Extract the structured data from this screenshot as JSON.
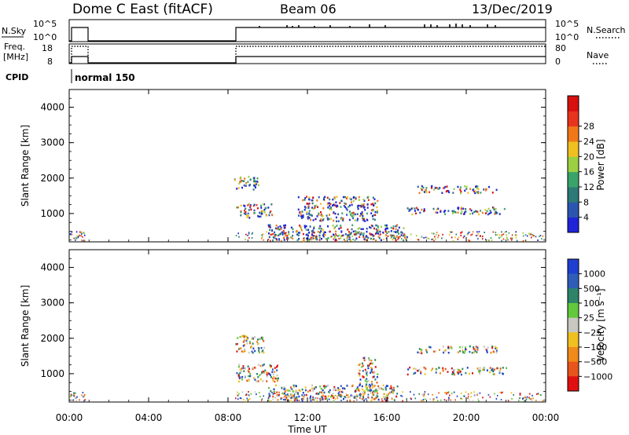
{
  "header": {
    "title": "Dome C East (fitACF)",
    "beam": "Beam 06",
    "date": "13/Dec/2019"
  },
  "strips": {
    "nsky_label": "N.Sky",
    "nsky_ticks": [
      "10^5",
      "10^0"
    ],
    "nsearch_label": "N.Search",
    "nsearch_ticks": [
      "10^5",
      "10^0"
    ],
    "freq_label": "Freq.",
    "freq_unit": "[MHz]",
    "freq_ticks": [
      "18",
      "8"
    ],
    "nave_label": "Nave",
    "nave_ticks": [
      "80",
      "0"
    ],
    "cpid_label": "CPID",
    "cpid_mode": "normal 150"
  },
  "colorbars": {
    "power": {
      "label": "Power [dB]",
      "ticks": [
        "4",
        "8",
        "12",
        "16",
        "20",
        "24",
        "28"
      ],
      "colors": [
        "#1f24d8",
        "#2b56b0",
        "#2d7a78",
        "#3aa36a",
        "#9bd042",
        "#f0c020",
        "#f07818",
        "#e8341c",
        "#d81010"
      ]
    },
    "velocity": {
      "label": "Velocity [m s⁻¹]",
      "ticks": [
        "1000",
        "500",
        "100",
        "25",
        "−25",
        "−100",
        "−500",
        "−1000"
      ],
      "colors": [
        "#1f3fd0",
        "#2f5db8",
        "#2e8468",
        "#62c83c",
        "#c8c8c0",
        "#f0c020",
        "#f08a18",
        "#e8541c",
        "#e01010"
      ]
    }
  },
  "chart_data": [
    {
      "type": "heatmap",
      "title": "",
      "ylabel": "Slant Range [km]",
      "xlabel": "",
      "ylim": [
        200,
        4500
      ],
      "xlim": [
        "00:00",
        "24:00"
      ],
      "yticks": [
        "1000",
        "2000",
        "3000",
        "4000"
      ],
      "quantity": "Power [dB]",
      "data_windows": [
        [
          "00:00",
          "00:50"
        ],
        [
          "08:15",
          "23:55"
        ]
      ],
      "echo_regions": [
        {
          "t": [
            8.3,
            9.5
          ],
          "range_km": [
            1700,
            2100
          ],
          "level": "4-12 dB"
        },
        {
          "t": [
            8.4,
            10.2
          ],
          "range_km": [
            900,
            1300
          ],
          "level": "4-16 dB"
        },
        {
          "t": [
            10.0,
            17.0
          ],
          "range_km": [
            250,
            700
          ],
          "level": "4-28 dB"
        },
        {
          "t": [
            11.5,
            15.5
          ],
          "range_km": [
            800,
            1500
          ],
          "level": "4-24 dB"
        },
        {
          "t": [
            17.0,
            22.0
          ],
          "range_km": [
            1000,
            1200
          ],
          "level": "4-24 dB"
        },
        {
          "t": [
            17.5,
            21.5
          ],
          "range_km": [
            1600,
            1800
          ],
          "level": "4-8 dB"
        }
      ]
    },
    {
      "type": "heatmap",
      "title": "",
      "ylabel": "Slant Range [km]",
      "xlabel": "Time UT",
      "ylim": [
        200,
        4500
      ],
      "xlim": [
        "00:00",
        "24:00"
      ],
      "yticks": [
        "1000",
        "2000",
        "3000",
        "4000"
      ],
      "xticks": [
        "00:00",
        "04:00",
        "08:00",
        "12:00",
        "16:00",
        "20:00",
        "00:00"
      ],
      "quantity": "Velocity [m/s]",
      "echo_regions": [
        {
          "t": [
            8.3,
            9.8
          ],
          "range_km": [
            1600,
            2100
          ],
          "level": "-25 to 25 m/s"
        },
        {
          "t": [
            8.4,
            10.5
          ],
          "range_km": [
            800,
            1300
          ],
          "level": "-100 to -500 m/s"
        },
        {
          "t": [
            10.0,
            16.5
          ],
          "range_km": [
            250,
            700
          ],
          "level": "-100 to 25 m/s"
        },
        {
          "t": [
            14.5,
            15.5
          ],
          "range_km": [
            500,
            1500
          ],
          "level": "100 to 500 m/s"
        },
        {
          "t": [
            17.0,
            22.0
          ],
          "range_km": [
            1000,
            1200
          ],
          "level": "100 to 500 m/s"
        },
        {
          "t": [
            17.5,
            21.5
          ],
          "range_km": [
            1600,
            1800
          ],
          "level": "25 to 100 m/s"
        }
      ]
    }
  ]
}
